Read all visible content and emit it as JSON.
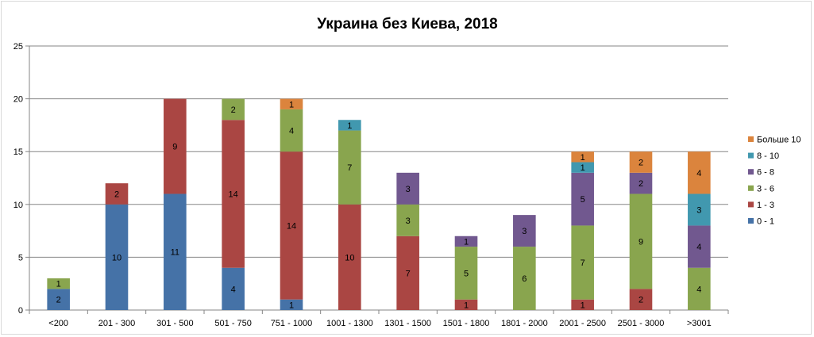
{
  "chart_data": {
    "type": "bar",
    "stacked": true,
    "title": "Украина без Киева, 2018",
    "xlabel": "",
    "ylabel": "",
    "ylim": [
      0,
      25
    ],
    "yticks": [
      0,
      5,
      10,
      15,
      20,
      25
    ],
    "grid": true,
    "legend_position": "right",
    "categories": [
      "<200",
      "201 - 300",
      "301 - 500",
      "501 - 750",
      "751 - 1000",
      "1001 - 1300",
      "1301 - 1500",
      "1501 - 1800",
      "1801 - 2000",
      "2001 - 2500",
      "2501 - 3000",
      ">3001"
    ],
    "series": [
      {
        "name": "0 - 1",
        "color": "#4572a7",
        "values": [
          2,
          10,
          11,
          4,
          1,
          0,
          0,
          0,
          0,
          0,
          0,
          0
        ]
      },
      {
        "name": "1 - 3",
        "color": "#aa4643",
        "values": [
          0,
          2,
          9,
          14,
          14,
          10,
          7,
          1,
          0,
          1,
          2,
          0
        ]
      },
      {
        "name": "3 - 6",
        "color": "#89a54e",
        "values": [
          1,
          0,
          0,
          2,
          4,
          7,
          3,
          5,
          6,
          7,
          9,
          4
        ]
      },
      {
        "name": "6 - 8",
        "color": "#71588f",
        "values": [
          0,
          0,
          0,
          0,
          0,
          0,
          3,
          1,
          3,
          5,
          2,
          4
        ]
      },
      {
        "name": "8 - 10",
        "color": "#4198af",
        "values": [
          0,
          0,
          0,
          0,
          0,
          1,
          0,
          0,
          0,
          1,
          0,
          3
        ]
      },
      {
        "name": "Больше 10",
        "color": "#db843d",
        "values": [
          0,
          0,
          0,
          0,
          1,
          0,
          0,
          0,
          0,
          1,
          2,
          4
        ]
      }
    ]
  }
}
